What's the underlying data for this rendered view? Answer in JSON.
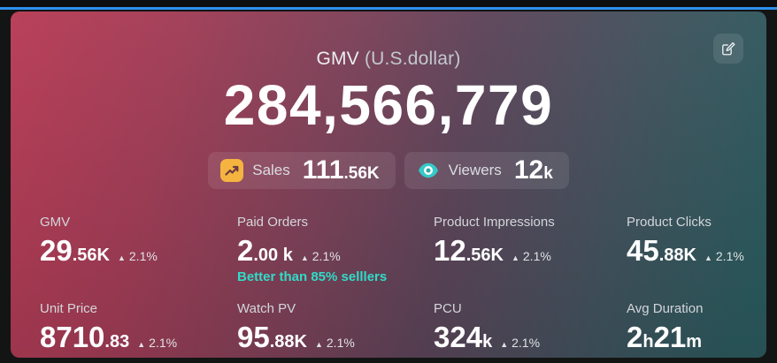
{
  "page": {
    "background": "#131514",
    "accent_line_color": "#2e90ee"
  },
  "card": {
    "title": "GMV",
    "title_unit": "(U.S.dollar)",
    "total_value": "284,566,779",
    "edit_button": {
      "icon": "edit-square-icon"
    },
    "badges": [
      {
        "icon": "sales-trend-up-icon",
        "icon_bg": "#f5b440",
        "label": "Sales",
        "value_main": "111",
        "value_small": ".56K"
      },
      {
        "icon": "viewers-eye-icon",
        "icon_color": "#35c9c9",
        "label": "Viewers",
        "value_main": "12",
        "value_small": "k"
      }
    ],
    "delta_up_glyph": "▲",
    "metrics": [
      {
        "label": "GMV",
        "segments": [
          {
            "text": "29",
            "size": "big"
          },
          {
            "text": ".56K",
            "size": "small"
          }
        ],
        "delta": "2.1%",
        "note": ""
      },
      {
        "label": "Paid Orders",
        "segments": [
          {
            "text": "2",
            "size": "big"
          },
          {
            "text": ".00 k",
            "size": "small"
          }
        ],
        "delta": "2.1%",
        "note": "Better than 85% selllers"
      },
      {
        "label": "Product Impressions",
        "segments": [
          {
            "text": "12",
            "size": "big"
          },
          {
            "text": ".56K",
            "size": "small"
          }
        ],
        "delta": "2.1%",
        "note": ""
      },
      {
        "label": "Product Clicks",
        "segments": [
          {
            "text": "45",
            "size": "big"
          },
          {
            "text": ".88K",
            "size": "small"
          }
        ],
        "delta": "2.1%",
        "note": ""
      },
      {
        "label": "Unit Price",
        "segments": [
          {
            "text": "8710",
            "size": "big"
          },
          {
            "text": ".83",
            "size": "small"
          }
        ],
        "delta": "2.1%",
        "note": ""
      },
      {
        "label": "Watch PV",
        "segments": [
          {
            "text": "95",
            "size": "big"
          },
          {
            "text": ".88K",
            "size": "small"
          }
        ],
        "delta": "2.1%",
        "note": ""
      },
      {
        "label": "PCU",
        "segments": [
          {
            "text": "324",
            "size": "big"
          },
          {
            "text": "k",
            "size": "small"
          }
        ],
        "delta": "2.1%",
        "note": ""
      },
      {
        "label": "Avg Duration",
        "segments": [
          {
            "text": "2",
            "size": "big"
          },
          {
            "text": "h",
            "size": "small"
          },
          {
            "text": "21",
            "size": "big"
          },
          {
            "text": "m",
            "size": "small"
          }
        ],
        "delta": "",
        "note": ""
      }
    ],
    "colors": {
      "gradient_left": "#b83b55",
      "gradient_right": "#2b5a5e",
      "note_teal": "#30dcc8",
      "delta_text": "#e0e2e5"
    }
  }
}
